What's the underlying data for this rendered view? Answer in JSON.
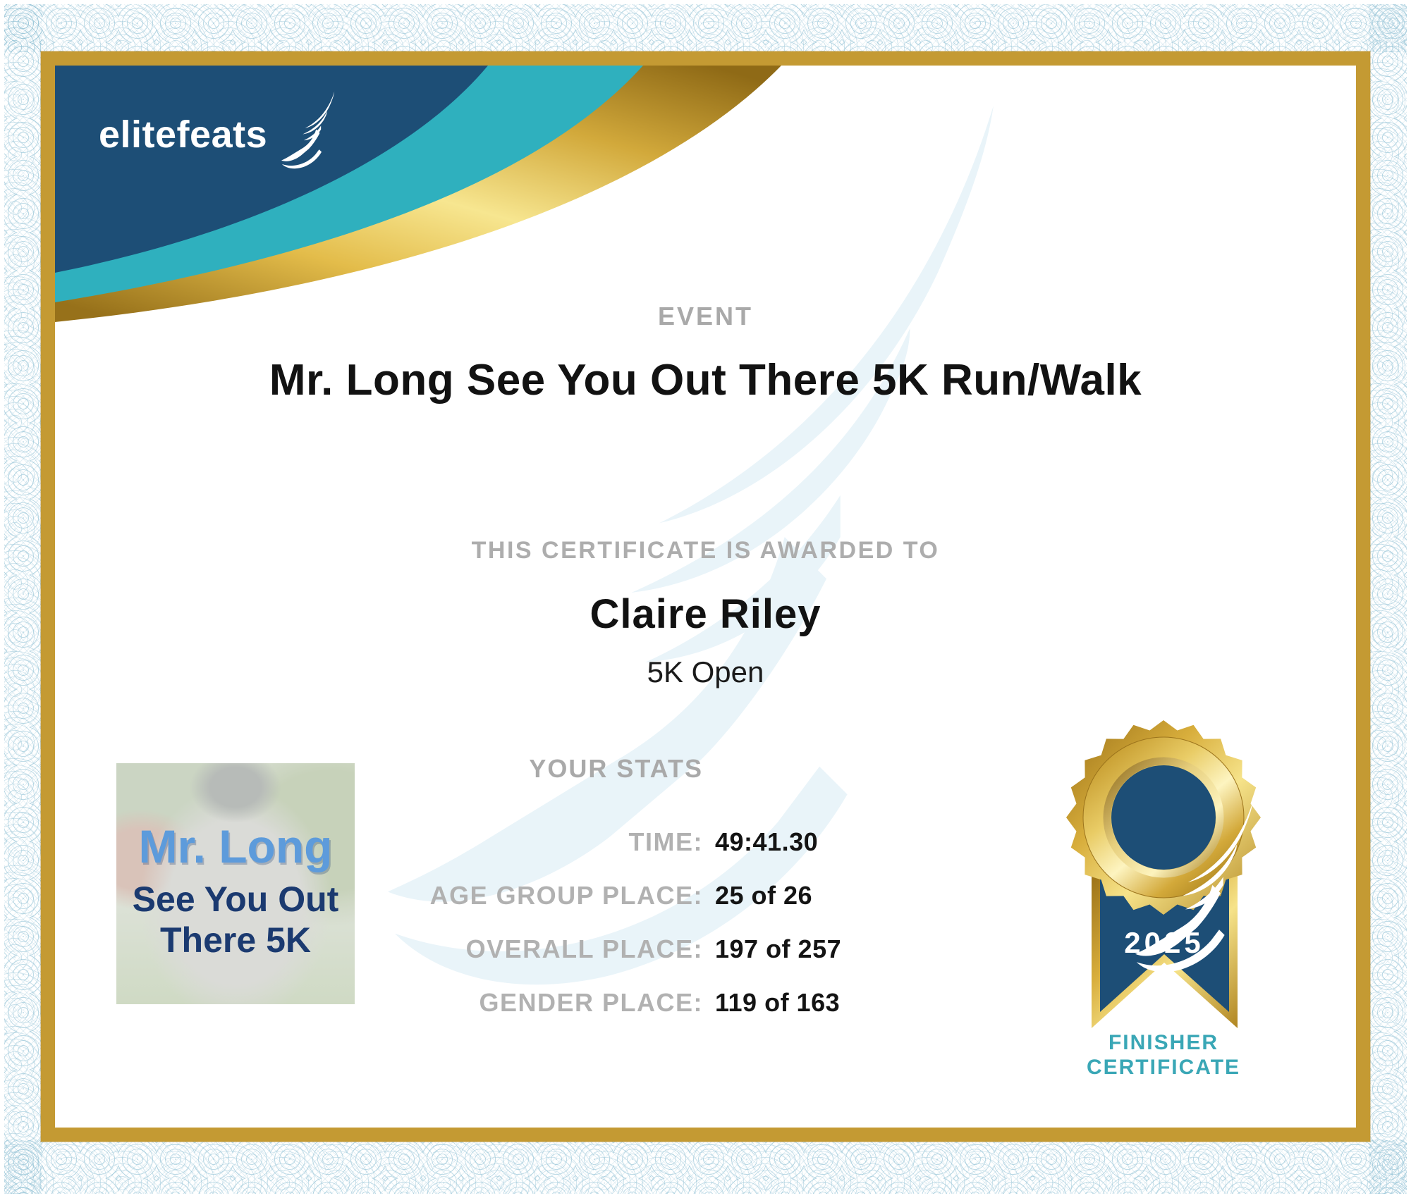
{
  "certificate": {
    "brand": {
      "logo_text": "elitefeats"
    },
    "event": {
      "heading": "EVENT",
      "title": "Mr. Long See You Out There 5K Run/Walk"
    },
    "award": {
      "heading": "THIS CERTIFICATE IS AWARDED TO",
      "recipient": "Claire Riley",
      "division": "5K Open"
    },
    "stats": {
      "heading": "YOUR STATS",
      "rows": [
        {
          "label": "TIME:",
          "value": "49:41.30"
        },
        {
          "label": "AGE GROUP PLACE:",
          "value": "25 of 26"
        },
        {
          "label": "OVERALL PLACE:",
          "value": "197 of 257"
        },
        {
          "label": "GENDER PLACE:",
          "value": "119 of 163"
        }
      ]
    },
    "event_logo": {
      "line1": "Mr. Long",
      "line2": "See You Out",
      "line3": "There 5K"
    },
    "badge": {
      "year": "2025",
      "caption_line1": "FINISHER",
      "caption_line2": "CERTIFICATE"
    },
    "colors": {
      "navy": "#1d4e76",
      "teal_band": "#2fb0be",
      "gold_frame": "#c49a33",
      "gray_label": "#a9a9a9",
      "finisher_teal": "#3aa7b6",
      "watermark_blue": "#e9f4f9",
      "mrlong_blue": "#5d9bdb",
      "mrlong_navy": "#1b3a70",
      "text_black": "#121212"
    }
  }
}
